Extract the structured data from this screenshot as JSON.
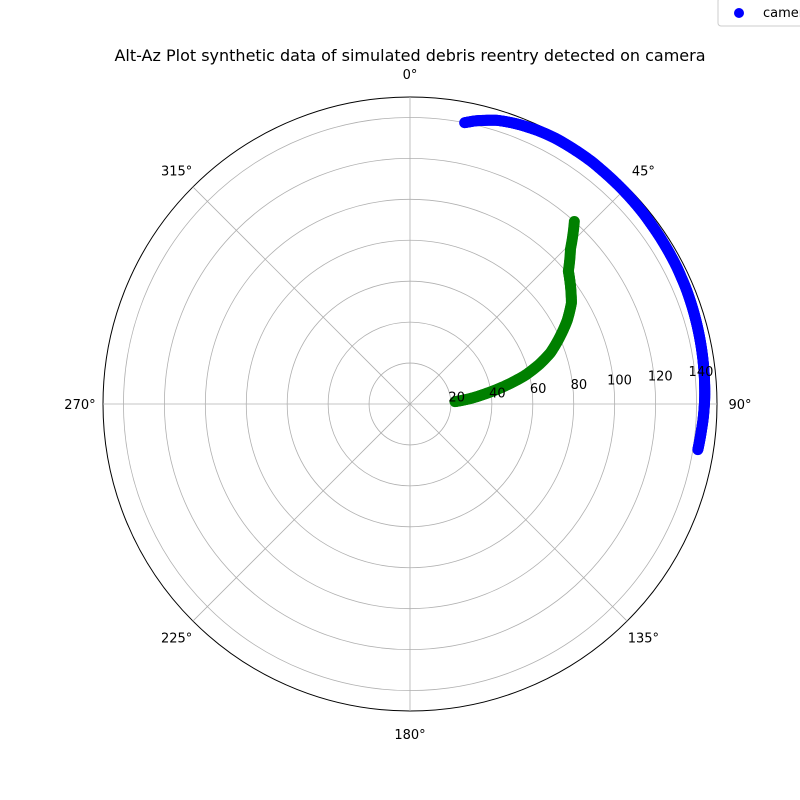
{
  "chart_data": {
    "type": "scatter",
    "projection": "polar",
    "title": "Alt-Az Plot synthetic data of simulated debris reentry detected on camera",
    "theta_zero_location": "N",
    "theta_direction": "clockwise",
    "theta_ticks": [
      "0°",
      "45°",
      "90°",
      "135°",
      "180°",
      "225°",
      "270°",
      "315°"
    ],
    "theta_tick_values": [
      0,
      45,
      90,
      135,
      180,
      225,
      270,
      315
    ],
    "r_ticks": [
      20,
      40,
      60,
      80,
      100,
      120,
      140
    ],
    "rlim": [
      0,
      150
    ],
    "grid": true,
    "legend": {
      "placement": "top-right",
      "entries": [
        "camera"
      ]
    },
    "series": [
      {
        "name": "camera",
        "color": "#0000ff",
        "theta_deg": [
          11,
          13,
          15,
          17,
          19,
          21,
          23,
          25,
          27,
          29,
          31,
          33,
          35,
          37,
          39,
          41,
          43,
          45,
          47,
          49,
          51,
          53,
          55,
          57,
          59,
          61,
          63,
          65,
          67,
          69,
          71,
          73,
          75,
          77,
          79,
          81,
          83,
          85,
          87,
          89,
          91,
          93,
          95,
          97,
          99
        ],
        "r": [
          140,
          142,
          143.5,
          145,
          145.8,
          146.5,
          147,
          147.5,
          147.8,
          148,
          148,
          148,
          148,
          148,
          147.8,
          147.7,
          147.6,
          147.5,
          147.4,
          147.3,
          147.2,
          147,
          146.9,
          146.8,
          146.7,
          146.6,
          146.5,
          146.3,
          146.2,
          146,
          145.8,
          145.6,
          145.4,
          145.2,
          145,
          144.8,
          144.6,
          144.4,
          144.2,
          144,
          143.7,
          143.4,
          143,
          142.7,
          142.4
        ],
        "_note_": ""
      },
      {
        "name": "",
        "color": "#008000",
        "theta_deg": [
          42,
          46,
          50,
          54,
          58,
          62,
          66,
          70,
          73,
          76,
          79,
          82,
          85,
          87
        ],
        "r": [
          120,
          109,
          101,
          97,
          93,
          87,
          80,
          73,
          66,
          58,
          48,
          38,
          29,
          22
        ]
      }
    ]
  }
}
